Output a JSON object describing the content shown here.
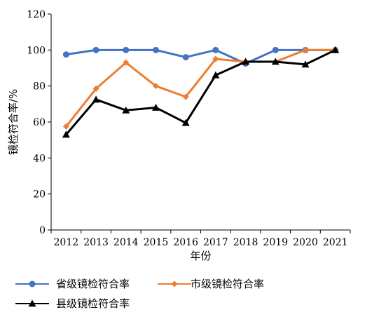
{
  "chart_data": {
    "type": "line",
    "title": "",
    "xlabel": "年份",
    "ylabel": "镜检符合率/%",
    "x": [
      "2012",
      "2013",
      "2014",
      "2015",
      "2016",
      "2017",
      "2018",
      "2019",
      "2020",
      "2021"
    ],
    "ylim": [
      0,
      120
    ],
    "yticks": [
      "0",
      "20",
      "40",
      "60",
      "80",
      "100",
      "120"
    ],
    "grid": false,
    "legend_position": "bottom",
    "series": [
      {
        "name": "省级镜检符合率",
        "color": "#4472C4",
        "marker": "circle",
        "values": [
          97.5,
          100,
          100,
          100,
          96,
          100,
          92.5,
          100,
          100,
          100
        ]
      },
      {
        "name": "市级镜检符合率",
        "color": "#ED7D31",
        "marker": "diamond",
        "values": [
          57.5,
          78.5,
          93,
          80,
          74,
          95,
          93.5,
          93.5,
          100,
          100
        ]
      },
      {
        "name": "县级镜检符合率",
        "color": "#000000",
        "marker": "triangle",
        "values": [
          53,
          72.5,
          66.5,
          68,
          59.5,
          86,
          93.5,
          93.5,
          92,
          100
        ]
      }
    ]
  }
}
